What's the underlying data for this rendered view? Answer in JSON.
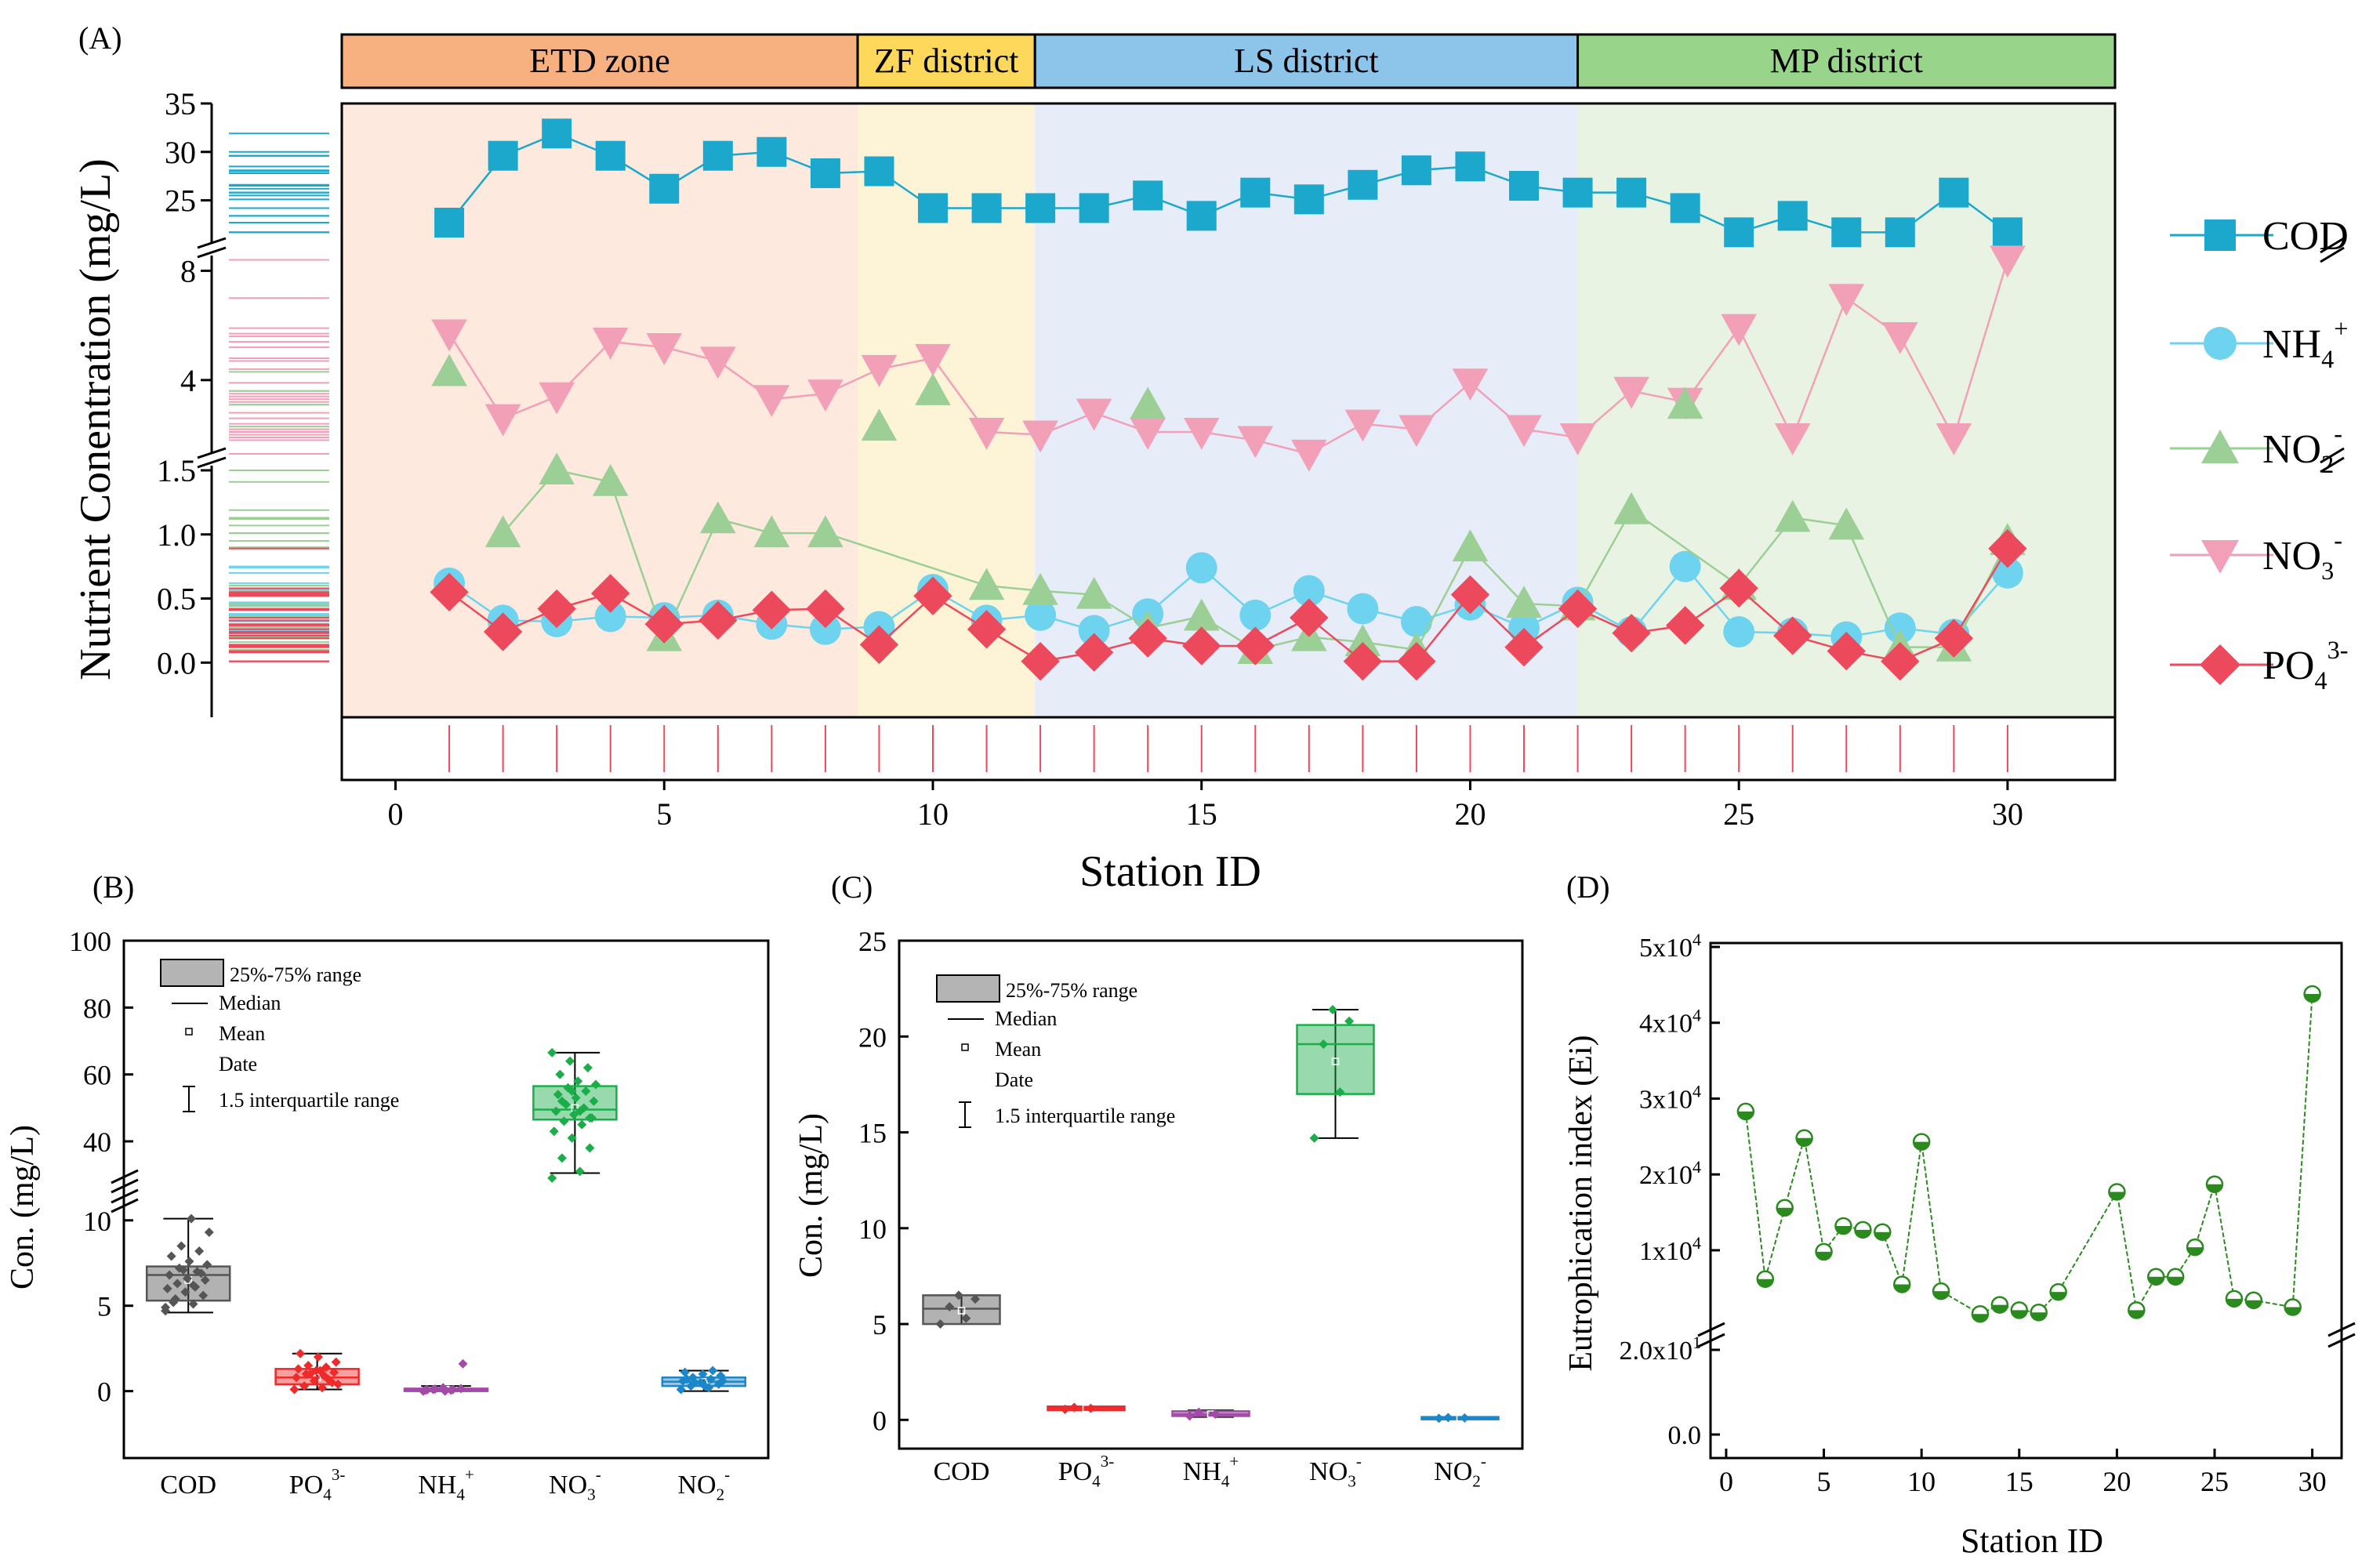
{
  "chart_data": [
    {
      "panel": "(A)",
      "type": "line",
      "xlabel": "Station ID",
      "ylabel": "Nutrient Conentration  (mg/L)",
      "x": [
        1,
        2,
        3,
        4,
        5,
        6,
        7,
        8,
        9,
        10,
        11,
        12,
        13,
        14,
        15,
        16,
        17,
        18,
        19,
        20,
        21,
        22,
        23,
        24,
        25,
        26,
        27,
        28,
        29,
        30
      ],
      "xlim": [
        -1,
        32
      ],
      "xticks": [
        "0",
        "5",
        "10",
        "15",
        "20",
        "25",
        "30"
      ],
      "xtick_values": [
        0,
        5,
        10,
        15,
        20,
        25,
        30
      ],
      "zones": [
        {
          "label": "ETD zone",
          "from": -1,
          "to": 8.6,
          "color": "#f7b07f",
          "shade": "#fde9de"
        },
        {
          "label": "ZF district",
          "from": 8.6,
          "to": 11.9,
          "color": "#fdd85a",
          "shade": "#fdf4d8"
        },
        {
          "label": "LS district",
          "from": 11.9,
          "to": 22,
          "color": "#8cc4ea",
          "shade": "#e6ecf8"
        },
        {
          "label": "MP district",
          "from": 22,
          "to": 32,
          "color": "#98d48a",
          "shade": "#e9f3e3"
        }
      ],
      "y_segments": [
        {
          "range": [
            21,
            35
          ],
          "ticks": [
            "25",
            "30",
            "35"
          ],
          "tick_values": [
            25,
            30,
            35
          ]
        },
        {
          "range": [
            1.5,
            8.5
          ],
          "ticks": [
            "4",
            "8"
          ],
          "tick_values": [
            4,
            8
          ]
        },
        {
          "range": [
            -0.2,
            1.5
          ],
          "ticks": [
            "0.0",
            "0.5",
            "1.0",
            "1.5"
          ],
          "tick_values": [
            0,
            0.5,
            1.0,
            1.5
          ]
        }
      ],
      "series": [
        {
          "name": "COD",
          "label": "COD",
          "sup": "",
          "segment": 0,
          "color": "#1ba8cc",
          "marker": "square",
          "values": [
            22.7,
            29.6,
            31.9,
            29.6,
            26.2,
            29.6,
            30.0,
            27.8,
            28.0,
            24.2,
            24.2,
            24.2,
            24.2,
            25.5,
            23.4,
            25.8,
            25.1,
            26.6,
            28.1,
            28.5,
            26.5,
            25.8,
            25.8,
            24.2,
            21.7,
            23.4,
            21.7,
            21.7,
            25.8,
            21.7
          ]
        },
        {
          "name": "NH4+",
          "label": "NH",
          "sub": "4",
          "sup": "+",
          "segment": 2,
          "color": "#6ed3ee",
          "marker": "circle",
          "values": [
            0.62,
            0.33,
            0.32,
            0.36,
            0.35,
            0.37,
            0.3,
            0.26,
            0.28,
            0.57,
            0.33,
            0.37,
            0.25,
            0.38,
            0.74,
            0.37,
            0.56,
            0.42,
            0.32,
            0.45,
            0.27,
            0.47,
            0.24,
            0.75,
            0.24,
            0.23,
            0.2,
            0.27,
            0.22,
            0.7
          ]
        },
        {
          "name": "NO2-",
          "label": "NO",
          "sub": "2",
          "sup": "-",
          "segment": 2,
          "color": "#9ccf95",
          "marker": "triangle-up",
          "values": [
            null,
            1.01,
            1.5,
            1.41,
            0.2,
            1.12,
            1.01,
            1.01,
            null,
            null,
            0.6,
            0.56,
            0.53,
            0.27,
            0.36,
            0.1,
            0.2,
            0.16,
            0.1,
            0.9,
            0.46,
            0.44,
            1.19,
            null,
            0.6,
            1.13,
            1.07,
            0.12,
            0.12,
            0.95
          ]
        },
        {
          "name": "NO3-",
          "label": "NO",
          "sub": "3",
          "sup": "-",
          "segment": 1,
          "color": "#f2a0b8",
          "marker": "triangle-down",
          "values": [
            5.7,
            2.6,
            3.4,
            5.4,
            5.2,
            4.7,
            3.3,
            3.5,
            4.4,
            4.8,
            2.1,
            2.0,
            2.8,
            2.1,
            2.1,
            1.8,
            1.3,
            2.4,
            2.2,
            3.9,
            2.2,
            1.9,
            3.6,
            3.2,
            5.9,
            1.9,
            7.0,
            5.6,
            1.9,
            8.4
          ]
        },
        {
          "name": "NO2- (upper part)",
          "label": "",
          "segment": 1,
          "color": "#9ccf95",
          "marker": "triangle-up",
          "values": [
            4.3,
            null,
            null,
            null,
            null,
            null,
            null,
            null,
            2.3,
            3.6,
            null,
            null,
            null,
            3.1,
            null,
            null,
            null,
            null,
            null,
            null,
            null,
            null,
            null,
            3.1,
            null,
            null,
            null,
            null,
            null,
            null
          ],
          "legend": false
        },
        {
          "name": "PO43-",
          "label": "PO",
          "sub": "4",
          "sup": "3-",
          "segment": 2,
          "color": "#ec4a5c",
          "marker": "diamond",
          "values": [
            0.55,
            0.24,
            0.42,
            0.54,
            0.3,
            0.33,
            0.41,
            0.42,
            0.14,
            0.52,
            0.26,
            0.01,
            0.08,
            0.19,
            0.13,
            0.13,
            0.35,
            0.01,
            0.01,
            0.53,
            0.12,
            0.42,
            0.23,
            0.29,
            0.58,
            0.21,
            0.09,
            0.01,
            0.19,
            0.89
          ]
        }
      ]
    },
    {
      "panel": "(B)",
      "type": "box",
      "ylabel": "Con.  (mg/L)",
      "categories": [
        "COD",
        "PO",
        "NH",
        "NO",
        "NO"
      ],
      "category_sub": [
        "",
        "4",
        "4",
        "3",
        "2"
      ],
      "category_sup": [
        "",
        "3-",
        "+",
        "-",
        "-"
      ],
      "colors": [
        "#555555",
        "#ee2a2a",
        "#a24aa8",
        "#1aad4a",
        "#1b86c8"
      ],
      "y_segments": [
        {
          "range": [
            -3,
            11
          ],
          "ticks": [
            "0",
            "5",
            "10"
          ],
          "tick_values": [
            0,
            5,
            10
          ]
        },
        {
          "range": [
            25,
            100
          ],
          "ticks": [
            "40",
            "60",
            "80",
            "100"
          ],
          "tick_values": [
            40,
            60,
            80,
            100
          ]
        }
      ],
      "boxes": [
        {
          "q1": 5.3,
          "median": 6.8,
          "mean": 6.5,
          "q3": 7.3,
          "whisker_low": 4.6,
          "whisker_high": 10.1,
          "segment": 0,
          "points": [
            4.7,
            5.1,
            5.4,
            5.6,
            5.8,
            6.0,
            6.1,
            6.3,
            6.5,
            6.6,
            6.8,
            7.0,
            7.2,
            7.4,
            7.6,
            7.9,
            8.2,
            8.5,
            9.3,
            10.1,
            5.2,
            6.9,
            7.1,
            4.9,
            6.2
          ]
        },
        {
          "q1": 0.4,
          "median": 0.8,
          "mean": 0.8,
          "q3": 1.3,
          "whisker_low": 0.1,
          "whisker_high": 2.2,
          "segment": 0,
          "points": [
            0.1,
            0.2,
            0.3,
            0.5,
            0.6,
            0.8,
            0.9,
            1.0,
            1.1,
            1.2,
            1.3,
            1.4,
            1.5,
            1.7,
            2.0,
            2.2,
            0.7,
            1.0,
            0.4,
            1.2
          ]
        },
        {
          "q1": 0.0,
          "median": 0.05,
          "mean": 0.1,
          "q3": 0.15,
          "whisker_low": 0.0,
          "whisker_high": 0.3,
          "segment": 0,
          "points": [
            0.0,
            0.05,
            0.1,
            0.15,
            0.2,
            0.05,
            0.1,
            0.12,
            1.6,
            0.0,
            0.08
          ]
        },
        {
          "q1": 46.5,
          "median": 49.5,
          "mean": 50.0,
          "q3": 56.5,
          "whisker_low": 30.5,
          "whisker_high": 66.5,
          "segment": 1,
          "points": [
            29,
            31,
            35,
            38,
            41,
            43,
            45,
            46,
            47,
            48,
            49,
            50,
            51,
            52,
            53,
            54,
            55,
            56,
            57,
            58,
            60,
            62,
            64,
            66.5,
            49,
            52,
            47,
            55
          ]
        },
        {
          "q1": 0.3,
          "median": 0.55,
          "mean": 0.55,
          "q3": 0.8,
          "whisker_low": 0.0,
          "whisker_high": 1.2,
          "segment": 0,
          "points": [
            0.1,
            0.2,
            0.3,
            0.4,
            0.5,
            0.6,
            0.7,
            0.8,
            0.9,
            1.0,
            1.1,
            1.2,
            0.5,
            0.6,
            0.3,
            0.7
          ]
        }
      ]
    },
    {
      "panel": "(C)",
      "type": "box",
      "ylabel": "Con.  (mg/L)",
      "categories": [
        "COD",
        "PO",
        "NH",
        "NO",
        "NO"
      ],
      "category_sub": [
        "",
        "4",
        "4",
        "3",
        "2"
      ],
      "category_sup": [
        "",
        "3-",
        "+",
        "-",
        "-"
      ],
      "colors": [
        "#555555",
        "#ee2a2a",
        "#a24aa8",
        "#1aad4a",
        "#1b86c8"
      ],
      "ylim": [
        -1.5,
        25
      ],
      "yticks": [
        "0",
        "5",
        "10",
        "15",
        "20",
        "25"
      ],
      "ytick_values": [
        0,
        5,
        10,
        15,
        20,
        25
      ],
      "boxes": [
        {
          "q1": 5.0,
          "median": 5.8,
          "mean": 5.7,
          "q3": 6.5,
          "whisker_low": 5.0,
          "whisker_high": 6.5,
          "points": [
            5.0,
            5.3,
            5.9,
            6.3,
            6.5
          ]
        },
        {
          "q1": 0.5,
          "median": 0.6,
          "mean": 0.6,
          "q3": 0.7,
          "whisker_low": 0.5,
          "whisker_high": 0.7,
          "points": [
            0.55,
            0.6,
            0.65
          ]
        },
        {
          "q1": 0.2,
          "median": 0.3,
          "mean": 0.3,
          "q3": 0.45,
          "whisker_low": 0.15,
          "whisker_high": 0.5,
          "points": [
            0.2,
            0.3,
            0.4
          ]
        },
        {
          "q1": 17.0,
          "median": 19.6,
          "mean": 18.7,
          "q3": 20.6,
          "whisker_low": 14.7,
          "whisker_high": 21.4,
          "points": [
            14.7,
            17.1,
            19.6,
            20.8,
            21.4
          ]
        },
        {
          "q1": 0.05,
          "median": 0.1,
          "mean": 0.1,
          "q3": 0.15,
          "whisker_low": 0.05,
          "whisker_high": 0.15,
          "points": [
            0.08,
            0.1,
            0.12
          ]
        }
      ]
    },
    {
      "panel": "(D)",
      "type": "line",
      "xlabel": "Station ID",
      "ylabel": "Eutrophication index (Ei)",
      "color": "#2a8a1e",
      "x": [
        1,
        2,
        3,
        4,
        5,
        6,
        7,
        8,
        9,
        10,
        11,
        13,
        14,
        15,
        16,
        17,
        20,
        21,
        22,
        23,
        24,
        25,
        26,
        27,
        29,
        30
      ],
      "values": [
        28300,
        6200,
        15600,
        24800,
        9800,
        13200,
        12700,
        12400,
        5500,
        24300,
        4600,
        1600,
        2800,
        2100,
        1800,
        4500,
        17700,
        2100,
        6500,
        6500,
        10400,
        18700,
        3600,
        3400,
        2500,
        43800
      ],
      "xlim": [
        -0.8,
        31.5
      ],
      "xticks": [
        "0",
        "5",
        "10",
        "15",
        "20",
        "25",
        "30"
      ],
      "xtick_values": [
        0,
        5,
        10,
        15,
        20,
        25,
        30
      ],
      "upper_ticks": [
        "1x10",
        "2x10",
        "3x10",
        "4x10",
        "5x10"
      ],
      "upper_tick_values": [
        10000,
        20000,
        30000,
        40000,
        50000
      ],
      "upper_tick_exp": "4",
      "lower_ticks": [
        "0.0",
        "2.0x10"
      ],
      "lower_tick_exp": "1"
    }
  ],
  "legend_B": {
    "range": "25%-75% range",
    "median": "Median",
    "mean": "Mean",
    "data": "Date",
    "iqr": "1.5 interquartile range"
  }
}
